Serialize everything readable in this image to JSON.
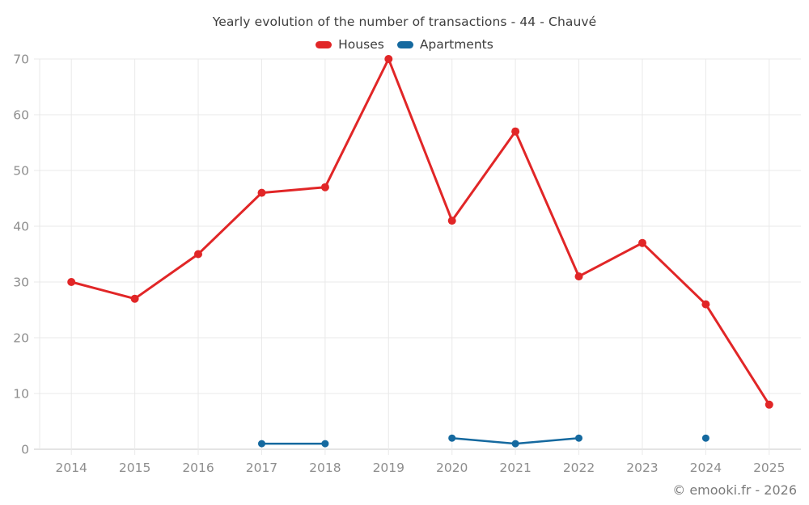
{
  "page": {
    "footer": "© emooki.fr - 2026"
  },
  "chart_data": {
    "type": "line",
    "title": "Yearly evolution of the number of transactions - 44 - Chauvé",
    "x": [
      2014,
      2015,
      2016,
      2017,
      2018,
      2019,
      2020,
      2021,
      2022,
      2023,
      2024,
      2025
    ],
    "series": [
      {
        "name": "Houses",
        "color": "#e12627",
        "line_width": 3,
        "point_radius": 5,
        "values": [
          30,
          27,
          35,
          46,
          47,
          70,
          41,
          57,
          31,
          37,
          26,
          8
        ]
      },
      {
        "name": "Apartments",
        "color": "#15699f",
        "line_width": 2.5,
        "point_radius": 4.5,
        "values": [
          null,
          null,
          null,
          1,
          1,
          null,
          2,
          1,
          2,
          null,
          2,
          null
        ]
      }
    ],
    "ylim": [
      0,
      70
    ],
    "yticks": [
      0,
      10,
      20,
      30,
      40,
      50,
      60,
      70
    ],
    "grid": true,
    "legend_position": "top",
    "xlabel": "",
    "ylabel": "",
    "colors": {
      "grid_line": "#e9e9e9",
      "axis_line": "#c9c9c9",
      "tick_label": "#8e8e8e",
      "title_text": "#3d3d3d",
      "background": "#ffffff"
    }
  }
}
